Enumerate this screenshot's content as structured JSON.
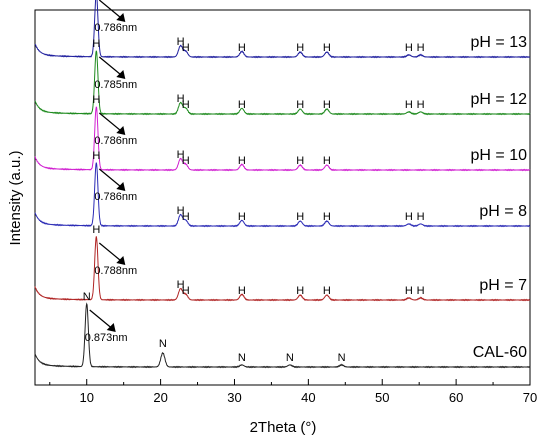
{
  "chart_data": {
    "type": "line",
    "title": "",
    "xlabel": "2Theta (°)",
    "ylabel": "Intensity (a.u.)",
    "xlim": [
      3,
      70
    ],
    "x_ticks": [
      10,
      20,
      30,
      40,
      50,
      60,
      70
    ],
    "y_ticks_shown": false,
    "grid": false,
    "series": [
      {
        "name": "pH = 13",
        "color": "#1f1f9e",
        "peaks": [
          {
            "x": 11.3,
            "label": "H",
            "height": 0.9
          },
          {
            "x": 22.7,
            "label": "H",
            "height": 0.16
          },
          {
            "x": 23.4,
            "label": "H",
            "height": 0.08
          },
          {
            "x": 31.0,
            "label": "H",
            "height": 0.08
          },
          {
            "x": 38.9,
            "label": "H",
            "height": 0.07
          },
          {
            "x": 42.5,
            "label": "H",
            "height": 0.07
          },
          {
            "x": 53.6,
            "label": "H",
            "height": 0.03
          },
          {
            "x": 55.2,
            "label": "H",
            "height": 0.03
          }
        ],
        "d_spacing": "0.786nm"
      },
      {
        "name": "pH = 12",
        "color": "#1e8a1e",
        "peaks": [
          {
            "x": 11.3,
            "label": "H",
            "height": 0.9
          },
          {
            "x": 22.7,
            "label": "H",
            "height": 0.16
          },
          {
            "x": 23.4,
            "label": "H",
            "height": 0.08
          },
          {
            "x": 31.0,
            "label": "H",
            "height": 0.08
          },
          {
            "x": 38.9,
            "label": "H",
            "height": 0.07
          },
          {
            "x": 42.5,
            "label": "H",
            "height": 0.07
          },
          {
            "x": 53.6,
            "label": "H",
            "height": 0.03
          },
          {
            "x": 55.2,
            "label": "H",
            "height": 0.03
          }
        ],
        "d_spacing": "0.785nm"
      },
      {
        "name": "pH = 10",
        "color": "#d01fd0",
        "peaks": [
          {
            "x": 11.3,
            "label": "H",
            "height": 0.9
          },
          {
            "x": 22.7,
            "label": "H",
            "height": 0.16
          },
          {
            "x": 23.4,
            "label": "H",
            "height": 0.08
          },
          {
            "x": 31.0,
            "label": "H",
            "height": 0.08
          },
          {
            "x": 38.9,
            "label": "H",
            "height": 0.07
          },
          {
            "x": 42.5,
            "label": "H",
            "height": 0.07
          }
        ],
        "d_spacing": "0.786nm"
      },
      {
        "name": "pH = 8",
        "color": "#2a2ab5",
        "peaks": [
          {
            "x": 11.3,
            "label": "H",
            "height": 0.9
          },
          {
            "x": 22.7,
            "label": "H",
            "height": 0.16
          },
          {
            "x": 23.4,
            "label": "H",
            "height": 0.08
          },
          {
            "x": 31.0,
            "label": "H",
            "height": 0.08
          },
          {
            "x": 38.9,
            "label": "H",
            "height": 0.07
          },
          {
            "x": 42.5,
            "label": "H",
            "height": 0.07
          },
          {
            "x": 53.6,
            "label": "H",
            "height": 0.03
          },
          {
            "x": 55.2,
            "label": "H",
            "height": 0.03
          }
        ],
        "d_spacing": "0.786nm"
      },
      {
        "name": "pH = 7",
        "color": "#b02424",
        "peaks": [
          {
            "x": 11.3,
            "label": "H",
            "height": 0.9
          },
          {
            "x": 22.7,
            "label": "H",
            "height": 0.16
          },
          {
            "x": 23.4,
            "label": "H",
            "height": 0.08
          },
          {
            "x": 31.0,
            "label": "H",
            "height": 0.08
          },
          {
            "x": 38.9,
            "label": "H",
            "height": 0.07
          },
          {
            "x": 42.5,
            "label": "H",
            "height": 0.07
          },
          {
            "x": 53.6,
            "label": "H",
            "height": 0.03
          },
          {
            "x": 55.2,
            "label": "H",
            "height": 0.03
          }
        ],
        "d_spacing": "0.788nm"
      },
      {
        "name": "CAL-60",
        "color": "#222222",
        "peaks": [
          {
            "x": 10.0,
            "label": "N",
            "height": 0.9
          },
          {
            "x": 20.3,
            "label": "N",
            "height": 0.2
          },
          {
            "x": 31.0,
            "label": "N",
            "height": 0.03
          },
          {
            "x": 37.5,
            "label": "N",
            "height": 0.03
          },
          {
            "x": 44.5,
            "label": "N",
            "height": 0.03
          }
        ],
        "d_spacing": "0.873nm"
      }
    ]
  }
}
